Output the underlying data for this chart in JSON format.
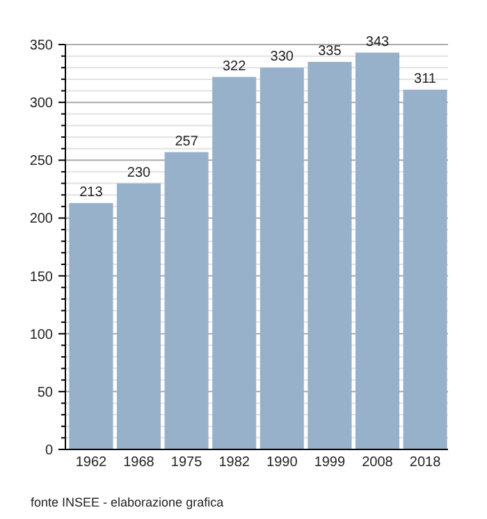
{
  "chart_data": {
    "type": "bar",
    "categories": [
      "1962",
      "1968",
      "1975",
      "1982",
      "1990",
      "1999",
      "2008",
      "2018"
    ],
    "values": [
      213,
      230,
      257,
      322,
      330,
      335,
      343,
      311
    ],
    "color": "#98b1cb",
    "data_labels": true,
    "grid": "y",
    "ylim": [
      0,
      350
    ],
    "yticks": [
      0,
      {
        "value": 10,
        "label": null
      },
      {
        "value": 20,
        "label": null
      },
      {
        "value": 30,
        "label": null
      },
      {
        "value": 40,
        "label": null
      },
      50,
      {
        "value": 60,
        "label": null
      },
      {
        "value": 70,
        "label": null
      },
      {
        "value": 80,
        "label": null
      },
      {
        "value": 90,
        "label": null
      },
      100,
      {
        "value": 110,
        "label": null
      },
      {
        "value": 120,
        "label": null
      },
      {
        "value": 130,
        "label": null
      },
      {
        "value": 140,
        "label": null
      },
      150,
      {
        "value": 160,
        "label": null
      },
      {
        "value": 170,
        "label": null
      },
      {
        "value": 180,
        "label": null
      },
      {
        "value": 190,
        "label": null
      },
      200,
      {
        "value": 210,
        "label": null
      },
      {
        "value": 220,
        "label": null
      },
      {
        "value": 230,
        "label": null
      },
      {
        "value": 240,
        "label": null
      },
      250,
      {
        "value": 260,
        "label": null
      },
      {
        "value": 270,
        "label": null
      },
      {
        "value": 280,
        "label": null
      },
      {
        "value": 290,
        "label": null
      },
      300,
      {
        "value": 310,
        "label": null
      },
      {
        "value": 320,
        "label": null
      },
      {
        "value": 330,
        "label": null
      },
      {
        "value": 340,
        "label": null
      },
      350
    ],
    "annotations": [
      "fonte INSEE - elaborazione grafica"
    ]
  }
}
